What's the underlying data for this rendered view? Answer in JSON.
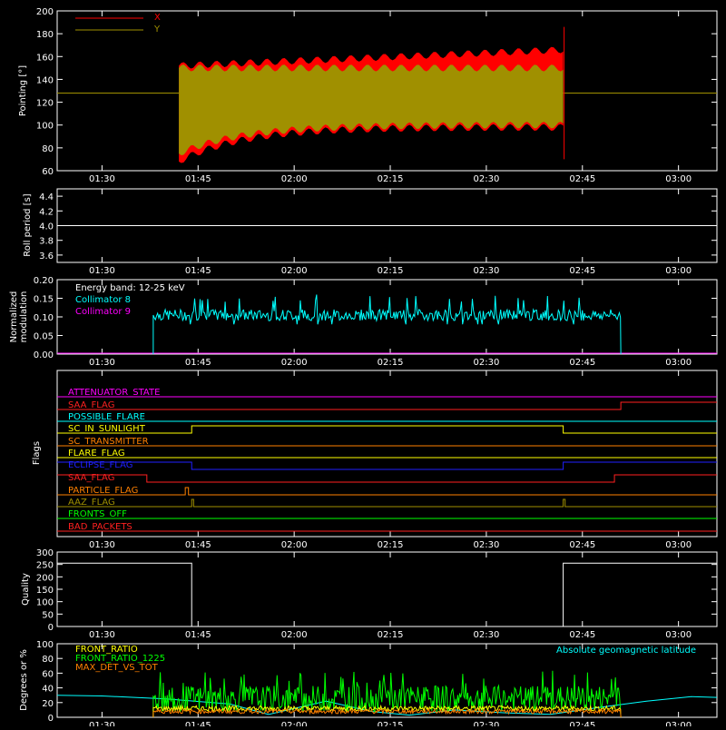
{
  "panels": {
    "pointing": {
      "ylabel": "Pointing [°]",
      "yticks": [
        "60",
        "80",
        "100",
        "120",
        "140",
        "160",
        "180",
        "200"
      ],
      "legend": [
        {
          "label": "X",
          "color": "#ff0000"
        },
        {
          "label": "Y",
          "color": "#a09000"
        }
      ]
    },
    "roll": {
      "ylabel": "Roll period [s]",
      "yticks": [
        "3.6",
        "3.8",
        "4.0",
        "4.2",
        "4.4"
      ]
    },
    "modulation": {
      "ylabel_1": "Normalized",
      "ylabel_2": "modulation",
      "yticks": [
        "0.00",
        "0.05",
        "0.10",
        "0.15",
        "0.20"
      ],
      "legend": [
        {
          "label": "Energy band: 12-25 keV",
          "color": "#ffffff"
        },
        {
          "label": "Collimator 8",
          "color": "#00ffff"
        },
        {
          "label": "Collimator 9",
          "color": "#ff00ff"
        }
      ]
    },
    "flags": {
      "ylabel": "Flags",
      "items": [
        {
          "label": "ATTENUATOR_STATE",
          "color": "#ff00ff"
        },
        {
          "label": "SAA_FLAG",
          "color": "#ff2020"
        },
        {
          "label": "POSSIBLE_FLARE",
          "color": "#00ffff"
        },
        {
          "label": "SC_IN_SUNLIGHT",
          "color": "#ffff00"
        },
        {
          "label": "SC_TRANSMITTER",
          "color": "#ff8000"
        },
        {
          "label": "FLARE_FLAG",
          "color": "#ffff00"
        },
        {
          "label": "ECLIPSE_FLAG",
          "color": "#2020ff"
        },
        {
          "label": "SAA_FLAG",
          "color": "#ff2020"
        },
        {
          "label": "PARTICLE_FLAG",
          "color": "#ff8000"
        },
        {
          "label": "AAZ_FLAG",
          "color": "#a09000"
        },
        {
          "label": "FRONTS_OFF",
          "color": "#00ff00"
        },
        {
          "label": "BAD_PACKETS",
          "color": "#ff2020"
        }
      ]
    },
    "quality": {
      "ylabel": "Quality",
      "yticks": [
        "0",
        "50",
        "100",
        "150",
        "200",
        "250",
        "300"
      ]
    },
    "bottom": {
      "ylabel": "Degrees or %",
      "yticks": [
        "0",
        "20",
        "40",
        "60",
        "80",
        "100"
      ],
      "legend": [
        {
          "label": "FRONT_RATIO",
          "color": "#ffff00"
        },
        {
          "label": "FRONT_RATIO_1225",
          "color": "#00ff00"
        },
        {
          "label": "MAX_DET_VS_TOT",
          "color": "#ff8000"
        }
      ],
      "right_legend": {
        "label": "Absolute geomagnetic latitude",
        "color": "#00ffff"
      }
    }
  },
  "time_ticks": [
    "01:30",
    "01:45",
    "02:00",
    "02:15",
    "02:30",
    "02:45",
    "03:00"
  ],
  "chart_data": [
    {
      "type": "line",
      "title": "",
      "ylabel": "Pointing [°]",
      "ylim": [
        60,
        200
      ],
      "x_range": [
        "01:23",
        "03:06"
      ],
      "series": [
        {
          "name": "X",
          "color": "#ff0000",
          "baseline": 128,
          "active": [
            "01:42",
            "02:42"
          ],
          "envelope_start": [
            68,
            152
          ],
          "envelope_end": [
            98,
            166
          ]
        },
        {
          "name": "Y",
          "color": "#a09000",
          "baseline": 128,
          "active": [
            "01:42",
            "02:42"
          ],
          "envelope_start": [
            75,
            150
          ],
          "envelope_end": [
            100,
            150
          ]
        }
      ]
    },
    {
      "type": "line",
      "ylabel": "Roll period [s]",
      "ylim": [
        3.5,
        4.5
      ],
      "series": [
        {
          "name": "",
          "color": "#ffffff",
          "value": 4.0
        }
      ]
    },
    {
      "type": "line",
      "ylabel": "Normalized modulation",
      "ylim": [
        0,
        0.2
      ],
      "series": [
        {
          "name": "Collimator 8",
          "color": "#00ffff",
          "active": [
            "01:38",
            "02:51"
          ],
          "mean": 0.105,
          "range": [
            0.08,
            0.16
          ]
        },
        {
          "name": "Collimator 9",
          "color": "#ff00ff",
          "value": 0.0
        }
      ]
    },
    {
      "type": "line",
      "ylabel": "Flags",
      "series": [
        {
          "name": "ATTENUATOR_STATE",
          "states": [
            [
              "01:23",
              0
            ]
          ]
        },
        {
          "name": "SAA_FLAG",
          "states": [
            [
              "01:23",
              0
            ],
            [
              "02:51",
              1
            ]
          ]
        },
        {
          "name": "POSSIBLE_FLARE",
          "states": [
            [
              "01:23",
              0
            ]
          ]
        },
        {
          "name": "SC_IN_SUNLIGHT",
          "states": [
            [
              "01:23",
              0
            ],
            [
              "01:44",
              1
            ],
            [
              "02:42",
              0
            ]
          ]
        },
        {
          "name": "SC_TRANSMITTER",
          "states": [
            [
              "01:23",
              0
            ]
          ]
        },
        {
          "name": "FLARE_FLAG",
          "states": [
            [
              "01:23",
              0
            ]
          ]
        },
        {
          "name": "ECLIPSE_FLAG",
          "states": [
            [
              "01:23",
              1
            ],
            [
              "01:44",
              0
            ],
            [
              "02:42",
              1
            ]
          ]
        },
        {
          "name": "SAA_FLAG",
          "states": [
            [
              "01:23",
              1
            ],
            [
              "01:37",
              0
            ],
            [
              "02:50",
              1
            ]
          ]
        },
        {
          "name": "PARTICLE_FLAG",
          "states": [
            [
              "01:23",
              0
            ],
            [
              "01:43",
              1
            ],
            [
              "01:43.5",
              0
            ]
          ]
        },
        {
          "name": "AAZ_FLAG",
          "states": [
            [
              "01:23",
              0
            ],
            [
              "01:44",
              1
            ],
            [
              "01:44.3",
              0
            ],
            [
              "02:42",
              1
            ],
            [
              "02:42.3",
              0
            ]
          ]
        },
        {
          "name": "FRONTS_OFF",
          "states": [
            [
              "01:23",
              0
            ]
          ]
        },
        {
          "name": "BAD_PACKETS",
          "states": [
            [
              "01:23",
              0
            ]
          ]
        }
      ]
    },
    {
      "type": "line",
      "ylabel": "Quality",
      "ylim": [
        0,
        300
      ],
      "series": [
        {
          "name": "",
          "color": "#ffffff",
          "states": [
            [
              "01:23",
              255
            ],
            [
              "01:44",
              0
            ],
            [
              "02:42",
              255
            ]
          ]
        }
      ]
    },
    {
      "type": "line",
      "ylabel": "Degrees or %",
      "ylim": [
        0,
        100
      ],
      "series": [
        {
          "name": "FRONT_RATIO",
          "color": "#ffff00",
          "active": [
            "01:38",
            "02:51"
          ],
          "mean": 12,
          "range": [
            6,
            18
          ]
        },
        {
          "name": "FRONT_RATIO_1225",
          "color": "#00ff00",
          "active": [
            "01:38",
            "02:51"
          ],
          "mean": 25,
          "range": [
            5,
            65
          ]
        },
        {
          "name": "MAX_DET_VS_TOT",
          "color": "#ff8000",
          "active": [
            "01:38",
            "02:51"
          ],
          "mean": 8,
          "range": [
            4,
            14
          ]
        },
        {
          "name": "Absolute geomagnetic latitude",
          "color": "#00ffff",
          "points": [
            [
              "01:23",
              30
            ],
            [
              "01:30",
              29
            ],
            [
              "01:40",
              25
            ],
            [
              "01:50",
              18
            ],
            [
              "01:56",
              4
            ],
            [
              "02:05",
              22
            ],
            [
              "02:12",
              8
            ],
            [
              "02:18",
              3
            ],
            [
              "02:25",
              10
            ],
            [
              "02:33",
              6
            ],
            [
              "02:40",
              4
            ],
            [
              "02:48",
              14
            ],
            [
              "02:55",
              22
            ],
            [
              "03:02",
              28
            ],
            [
              "03:06",
              27
            ]
          ]
        }
      ]
    }
  ]
}
